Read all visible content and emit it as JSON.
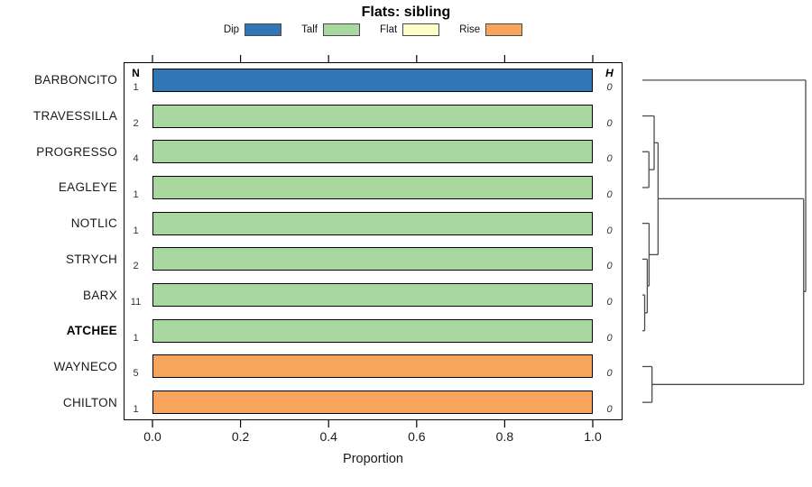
{
  "title": "Flats: sibling",
  "legend": {
    "items": [
      {
        "label": "Dip",
        "color": "#3078B5"
      },
      {
        "label": "Talf",
        "color": "#A8D79F"
      },
      {
        "label": "Flat",
        "color": "#FFFFC8"
      },
      {
        "label": "Rise",
        "color": "#F9A45C"
      }
    ]
  },
  "columns": {
    "n_header": "N",
    "h_header": "H"
  },
  "chart_data": {
    "type": "bar",
    "orientation": "horizontal",
    "title": "Flats: sibling",
    "xlabel": "Proportion",
    "xlim": [
      0.0,
      1.0
    ],
    "x_ticks": [
      "0.0",
      "0.2",
      "0.4",
      "0.6",
      "0.8",
      "1.0"
    ],
    "rows": [
      {
        "label": "BARBONCITO",
        "n": "1",
        "h": "0",
        "category": "Dip",
        "value": 1.0,
        "bold": false
      },
      {
        "label": "TRAVESSILLA",
        "n": "2",
        "h": "0",
        "category": "Talf",
        "value": 1.0,
        "bold": false
      },
      {
        "label": "PROGRESSO",
        "n": "4",
        "h": "0",
        "category": "Talf",
        "value": 1.0,
        "bold": false
      },
      {
        "label": "EAGLEYE",
        "n": "1",
        "h": "0",
        "category": "Talf",
        "value": 1.0,
        "bold": false
      },
      {
        "label": "NOTLIC",
        "n": "1",
        "h": "0",
        "category": "Talf",
        "value": 1.0,
        "bold": false
      },
      {
        "label": "STRYCH",
        "n": "2",
        "h": "0",
        "category": "Talf",
        "value": 1.0,
        "bold": false
      },
      {
        "label": "BARX",
        "n": "11",
        "h": "0",
        "category": "Talf",
        "value": 1.0,
        "bold": false
      },
      {
        "label": "ATCHEE",
        "n": "1",
        "h": "0",
        "category": "Talf",
        "value": 1.0,
        "bold": true
      },
      {
        "label": "WAYNECO",
        "n": "5",
        "h": "0",
        "category": "Rise",
        "value": 1.0,
        "bold": false
      },
      {
        "label": "CHILTON",
        "n": "1",
        "h": "0",
        "category": "Rise",
        "value": 1.0,
        "bold": false
      }
    ],
    "dendrogram": {
      "position": "right",
      "merges": [
        {
          "id": "m1",
          "a": "PROGRESSO",
          "b": "EAGLEYE",
          "height": 0.04
        },
        {
          "id": "m2",
          "a": "TRAVESSILLA",
          "b": "m1",
          "height": 0.072
        },
        {
          "id": "m3",
          "a": "BARX",
          "b": "ATCHEE",
          "height": 0.014
        },
        {
          "id": "m4",
          "a": "STRYCH",
          "b": "m3",
          "height": 0.03
        },
        {
          "id": "m5",
          "a": "NOTLIC",
          "b": "m4",
          "height": 0.041
        },
        {
          "id": "m6",
          "a": "m2",
          "b": "m5",
          "height": 0.096
        },
        {
          "id": "m7",
          "a": "WAYNECO",
          "b": "CHILTON",
          "height": 0.059
        },
        {
          "id": "m8",
          "a": "m6",
          "b": "m7",
          "height": 0.9875
        },
        {
          "id": "m9",
          "a": "BARBONCITO",
          "b": "m8",
          "height": 1.0
        }
      ]
    }
  }
}
